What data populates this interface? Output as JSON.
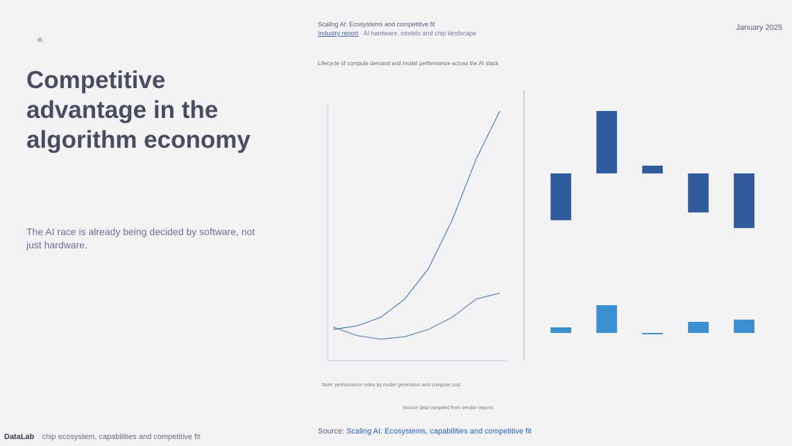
{
  "slide": {
    "corner_icon": "spark-icon",
    "title_lines": [
      "Competitive",
      "advantage in the",
      "algorithm economy"
    ],
    "subtitle": "The AI race is already being decided by software, not just hardware."
  },
  "footer": {
    "brand": "DataLab",
    "note": "chip ecosystem, capabilities and competitive fit"
  },
  "figure": {
    "publication": "Scaling AI: Ecosystems and competitive fit",
    "publication_sub_link": "Industry report",
    "publication_sub_rest": "· AI hardware, models and chip landscape",
    "date": "January 2025",
    "caption": "Lifecycle of compute demand and model performance across the AI stack",
    "note": "Note: performance index by model generation and compute cost",
    "note2": "Source data compiled from vendor reports"
  },
  "source": {
    "label": "Source:",
    "link_text": "Scaling AI: Ecosystems, capabilities and competitive fit"
  },
  "colors": {
    "accent_dark": "#2f5b9c",
    "accent_light": "#3b8fd1",
    "text": "#4a4d62"
  },
  "chart_data": [
    {
      "type": "line",
      "title": "",
      "series": [
        {
          "name": "",
          "points": [
            [
              0,
              2
            ],
            [
              1,
              2.3
            ],
            [
              2,
              3
            ],
            [
              3,
              4.5
            ],
            [
              4,
              7
            ],
            [
              5,
              11
            ],
            [
              6,
              16
            ],
            [
              7,
              20
            ]
          ]
        },
        {
          "name": "",
          "points": [
            [
              0,
              2.2
            ],
            [
              1,
              1.5
            ],
            [
              2,
              1.2
            ],
            [
              3,
              1.4
            ],
            [
              4,
              2
            ],
            [
              5,
              3
            ],
            [
              6,
              4.5
            ],
            [
              7,
              5
            ]
          ]
        }
      ],
      "xlim": [
        0,
        7
      ],
      "ylim": [
        0,
        20
      ]
    },
    {
      "type": "bar",
      "title": "",
      "categories": [
        "",
        "",
        "",
        "",
        ""
      ],
      "values": [
        -60,
        80,
        10,
        -50,
        -70
      ],
      "note": "waterfall-style floating bars"
    },
    {
      "type": "bar",
      "title": "",
      "categories": [
        "",
        "",
        "",
        "",
        ""
      ],
      "values": [
        5,
        25,
        0,
        10,
        12
      ]
    }
  ]
}
